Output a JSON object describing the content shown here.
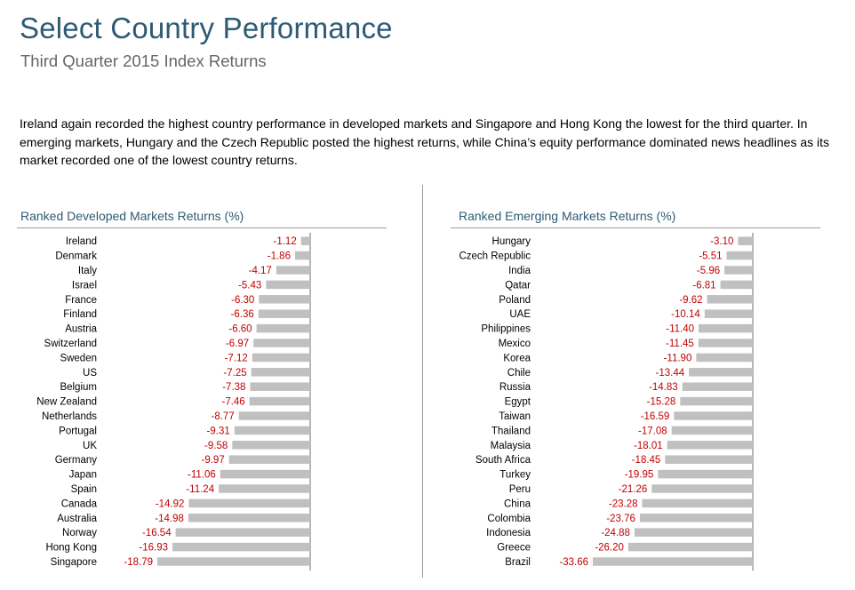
{
  "header": {
    "title": "Select Country Performance",
    "subtitle": "Third Quarter 2015 Index Returns"
  },
  "intro_text": "Ireland again recorded the highest country performance in developed markets and Singapore and Hong Kong the lowest for the third quarter. In emerging markets, Hungary and the Czech Republic posted the highest returns, while China’s equity performance dominated news headlines as its market recorded one of the lowest country returns.",
  "colors": {
    "bar": "#c0c0c0",
    "value_label": "#c00000",
    "title": "#2e5a73"
  },
  "chart_data": [
    {
      "type": "bar",
      "orientation": "horizontal",
      "title": "Ranked Developed Markets Returns (%)",
      "categories": [
        "Ireland",
        "Denmark",
        "Italy",
        "Israel",
        "France",
        "Finland",
        "Austria",
        "Switzerland",
        "Sweden",
        "US",
        "Belgium",
        "New Zealand",
        "Netherlands",
        "Portugal",
        "UK",
        "Germany",
        "Japan",
        "Spain",
        "Canada",
        "Australia",
        "Norway",
        "Hong Kong",
        "Singapore"
      ],
      "values": [
        -1.12,
        -1.86,
        -4.17,
        -5.43,
        -6.3,
        -6.36,
        -6.6,
        -6.97,
        -7.12,
        -7.25,
        -7.38,
        -7.46,
        -8.77,
        -9.31,
        -9.58,
        -9.97,
        -11.06,
        -11.24,
        -14.92,
        -14.98,
        -16.54,
        -16.93,
        -18.79
      ],
      "labels": [
        "-1.12",
        "-1.86",
        "-4.17",
        "-5.43",
        "-6.30",
        "-6.36",
        "-6.60",
        "-6.97",
        "-7.12",
        "-7.25",
        "-7.38",
        "-7.46",
        "-8.77",
        "-9.31",
        "-9.58",
        "-9.97",
        "-11.06",
        "-11.24",
        "-14.92",
        "-14.98",
        "-16.54",
        "-16.93",
        "-18.79"
      ],
      "xlim": [
        -18.79,
        0
      ],
      "grid": false,
      "data_labels": true
    },
    {
      "type": "bar",
      "orientation": "horizontal",
      "title": "Ranked Emerging Markets Returns (%)",
      "categories": [
        "Hungary",
        "Czech Republic",
        "India",
        "Qatar",
        "Poland",
        "UAE",
        "Philippines",
        "Mexico",
        "Korea",
        "Chile",
        "Russia",
        "Egypt",
        "Taiwan",
        "Thailand",
        "Malaysia",
        "South Africa",
        "Turkey",
        "Peru",
        "China",
        "Colombia",
        "Indonesia",
        "Greece",
        "Brazil"
      ],
      "values": [
        -3.1,
        -5.51,
        -5.96,
        -6.81,
        -9.62,
        -10.14,
        -11.4,
        -11.45,
        -11.9,
        -13.44,
        -14.83,
        -15.28,
        -16.59,
        -17.08,
        -18.01,
        -18.45,
        -19.95,
        -21.26,
        -23.28,
        -23.76,
        -24.88,
        -26.2,
        -33.66
      ],
      "labels": [
        "-3.10",
        "-5.51",
        "-5.96",
        "-6.81",
        "-9.62",
        "-10.14",
        "-11.40",
        "-11.45",
        "-11.90",
        "-13.44",
        "-14.83",
        "-15.28",
        "-16.59",
        "-17.08",
        "-18.01",
        "-18.45",
        "-19.95",
        "-21.26",
        "-23.28",
        "-23.76",
        "-24.88",
        "-26.20",
        "-33.66"
      ],
      "xlim": [
        -33.66,
        0
      ],
      "grid": false,
      "data_labels": true
    }
  ]
}
